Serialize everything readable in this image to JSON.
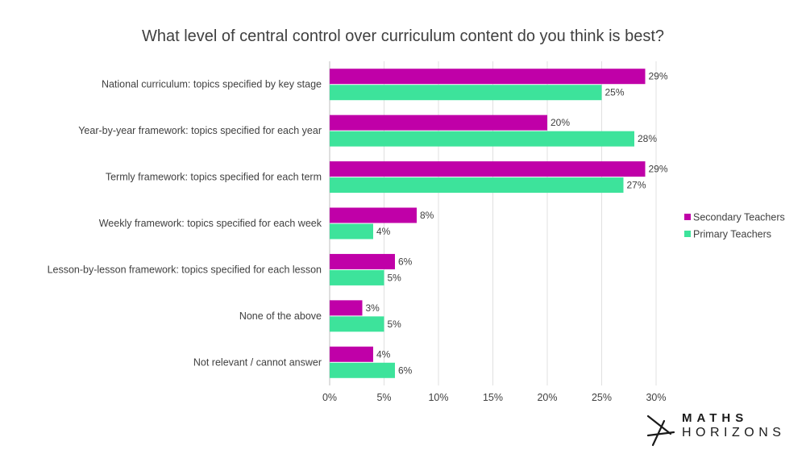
{
  "chart_data": {
    "type": "bar",
    "orientation": "horizontal",
    "title": "What level of central control over curriculum content do you think is best?",
    "categories": [
      "National curriculum: topics specified by key stage",
      "Year-by-year framework: topics specified for each year",
      "Termly framework: topics specified for each term",
      "Weekly framework: topics specified for each week",
      "Lesson-by-lesson framework: topics specified for each lesson",
      "None of the above",
      "Not relevant / cannot answer"
    ],
    "series": [
      {
        "name": "Secondary Teachers",
        "color": "#c000a8",
        "values": [
          29,
          20,
          29,
          8,
          6,
          3,
          4
        ],
        "labels": [
          "29%",
          "20%",
          "29%",
          "8%",
          "6%",
          "3%",
          "4%"
        ]
      },
      {
        "name": "Primary Teachers",
        "color": "#3de39b",
        "values": [
          25,
          28,
          27,
          4,
          5,
          5,
          6
        ],
        "labels": [
          "25%",
          "28%",
          "27%",
          "4%",
          "5%",
          "5%",
          "6%"
        ]
      }
    ],
    "xlim": [
      0,
      30
    ],
    "xticks": [
      0,
      5,
      10,
      15,
      20,
      25,
      30
    ],
    "xtick_labels": [
      "0%",
      "5%",
      "10%",
      "15%",
      "20%",
      "25%",
      "30%"
    ],
    "grid": "vertical",
    "legend_position": "right"
  },
  "logo": {
    "line1": "MATHS",
    "line2": "HORIZONS",
    "icon": "maths-horizons-x-icon"
  }
}
